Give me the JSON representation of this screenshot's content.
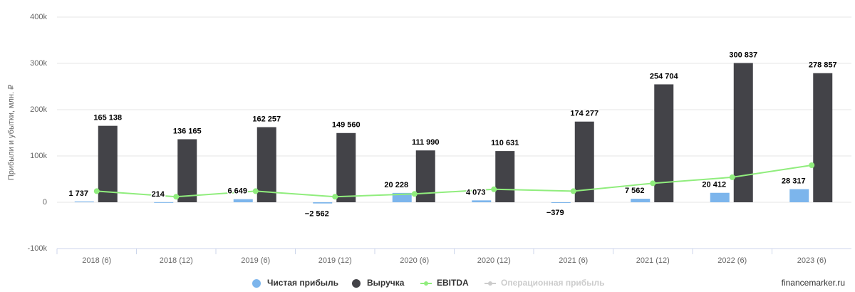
{
  "chart_data": {
    "type": "bar",
    "y_axis_label": "Прибыли и убытки, млн. ₽",
    "watermark": "financemarker.ru",
    "categories": [
      "2018 (6)",
      "2018 (12)",
      "2019 (6)",
      "2019 (12)",
      "2020 (6)",
      "2020 (12)",
      "2021 (6)",
      "2021 (12)",
      "2022 (6)",
      "2023 (6)"
    ],
    "series": [
      {
        "name": "Чистая прибыль",
        "color": "#7cb5ec",
        "kind": "bar",
        "values": [
          1737,
          214,
          6649,
          -2562,
          20228,
          4073,
          -379,
          7562,
          20412,
          28317
        ],
        "value_labels": [
          "1 737",
          "214",
          "6 649",
          "−2 562",
          "20 228",
          "4 073",
          "−379",
          "7 562",
          "20 412",
          "28 317"
        ]
      },
      {
        "name": "Выручка",
        "color": "#434348",
        "kind": "bar",
        "values": [
          165138,
          136165,
          162257,
          149560,
          111990,
          110631,
          174277,
          254704,
          300837,
          278857
        ],
        "value_labels": [
          "165 138",
          "136 165",
          "162 257",
          "149 560",
          "111 990",
          "110 631",
          "174 277",
          "254 704",
          "300 837",
          "278 857"
        ]
      },
      {
        "name": "EBITDA",
        "color": "#90ed7d",
        "kind": "line",
        "values": [
          24000,
          12000,
          24000,
          12000,
          18000,
          28000,
          24000,
          41000,
          54000,
          80000
        ]
      },
      {
        "name": "Операционная прибыль",
        "color": "#cccccc",
        "kind": "line",
        "hidden": true,
        "values": [
          null,
          null,
          null,
          null,
          null,
          null,
          null,
          null,
          null,
          null
        ]
      }
    ],
    "ylim": [
      -100000,
      400000
    ],
    "yticks": [
      {
        "value": -100000,
        "label": "-100k"
      },
      {
        "value": 0,
        "label": "0"
      },
      {
        "value": 100000,
        "label": "100k"
      },
      {
        "value": 200000,
        "label": "200k"
      },
      {
        "value": 300000,
        "label": "300k"
      },
      {
        "value": 400000,
        "label": "400k"
      }
    ],
    "grid": true
  }
}
